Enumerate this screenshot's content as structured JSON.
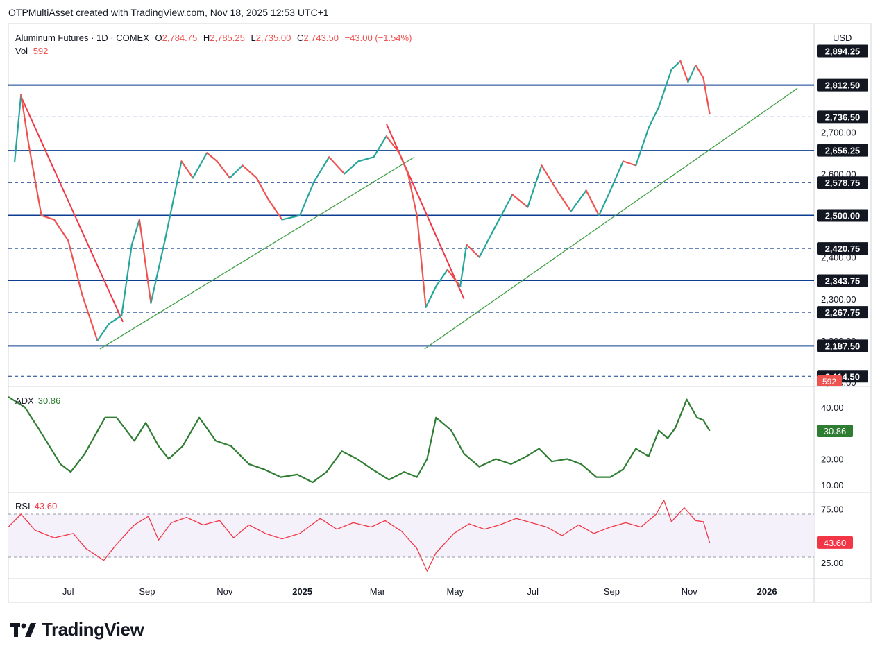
{
  "header": {
    "attribution": "OTPMultiAsset created with TradingView.com, Nov 18, 2025 12:53 UTC+1"
  },
  "brand": {
    "name": "TradingView"
  },
  "colors": {
    "up": "#26a69a",
    "down": "#ef5350",
    "level": "#0d3d91",
    "adx": "#2e7d32",
    "rsi": "#f23645",
    "trend_up": "#43a047",
    "trend_down": "#f23645",
    "label_bg": "#131722"
  },
  "chart_data": {
    "type": "candlestick",
    "legend": {
      "symbol": "Aluminum Futures · 1D · COMEX",
      "open_label": "O",
      "open": "2,784.75",
      "high_label": "H",
      "high": "2,785.25",
      "low_label": "L",
      "low": "2,735.00",
      "close_label": "C",
      "close": "2,743.50",
      "change": "−43.00 (−1.54%)",
      "vol_label": "Vol",
      "vol": "592"
    },
    "currency": "USD",
    "price_range": [
      2090,
      2960
    ],
    "price_ticks": [
      "2,700.00",
      "2,600.00",
      "2,400.00",
      "2,300.00",
      "2,200.00",
      "2,100.00"
    ],
    "price_tick_values": [
      2700,
      2600,
      2400,
      2300,
      2200,
      2100
    ],
    "levels": [
      {
        "value": 2894.25,
        "label": "2,894.25",
        "style": "dashed"
      },
      {
        "value": 2812.5,
        "label": "2,812.50",
        "style": "solid-thick"
      },
      {
        "value": 2736.5,
        "label": "2,736.50",
        "style": "dashed"
      },
      {
        "value": 2656.25,
        "label": "2,656.25",
        "style": "solid-thin"
      },
      {
        "value": 2578.75,
        "label": "2,578.75",
        "style": "dashed"
      },
      {
        "value": 2500.0,
        "label": "2,500.00",
        "style": "solid-thick"
      },
      {
        "value": 2420.75,
        "label": "2,420.75",
        "style": "dashed"
      },
      {
        "value": 2343.75,
        "label": "2,343.75",
        "style": "solid-thin"
      },
      {
        "value": 2267.75,
        "label": "2,267.75",
        "style": "dashed"
      },
      {
        "value": 2187.5,
        "label": "2,187.50",
        "style": "solid-thick"
      },
      {
        "value": 2114.5,
        "label": "2,114.50",
        "style": "dashed"
      }
    ],
    "price_path": [
      [
        "2024-05-20",
        2630
      ],
      [
        "2024-05-25",
        2790
      ],
      [
        "2024-05-31",
        2670
      ],
      [
        "2024-06-10",
        2500
      ],
      [
        "2024-06-20",
        2490
      ],
      [
        "2024-07-01",
        2440
      ],
      [
        "2024-07-12",
        2310
      ],
      [
        "2024-07-24",
        2200
      ],
      [
        "2024-08-02",
        2240
      ],
      [
        "2024-08-12",
        2260
      ],
      [
        "2024-08-20",
        2430
      ],
      [
        "2024-08-26",
        2490
      ],
      [
        "2024-09-04",
        2290
      ],
      [
        "2024-09-15",
        2440
      ],
      [
        "2024-09-28",
        2630
      ],
      [
        "2024-10-07",
        2590
      ],
      [
        "2024-10-18",
        2650
      ],
      [
        "2024-10-26",
        2630
      ],
      [
        "2024-11-05",
        2590
      ],
      [
        "2024-11-15",
        2620
      ],
      [
        "2024-11-26",
        2590
      ],
      [
        "2024-12-05",
        2540
      ],
      [
        "2024-12-16",
        2490
      ],
      [
        "2024-12-30",
        2500
      ],
      [
        "2025-01-10",
        2580
      ],
      [
        "2025-01-22",
        2640
      ],
      [
        "2025-02-03",
        2600
      ],
      [
        "2025-02-14",
        2630
      ],
      [
        "2025-02-26",
        2640
      ],
      [
        "2025-03-08",
        2690
      ],
      [
        "2025-03-18",
        2650
      ],
      [
        "2025-03-25",
        2600
      ],
      [
        "2025-04-01",
        2500
      ],
      [
        "2025-04-08",
        2280
      ],
      [
        "2025-04-16",
        2330
      ],
      [
        "2025-04-25",
        2370
      ],
      [
        "2025-05-05",
        2330
      ],
      [
        "2025-05-10",
        2430
      ],
      [
        "2025-05-20",
        2400
      ],
      [
        "2025-06-01",
        2470
      ],
      [
        "2025-06-15",
        2550
      ],
      [
        "2025-06-27",
        2520
      ],
      [
        "2025-07-08",
        2620
      ],
      [
        "2025-07-20",
        2560
      ],
      [
        "2025-07-31",
        2510
      ],
      [
        "2025-08-12",
        2560
      ],
      [
        "2025-08-22",
        2500
      ],
      [
        "2025-08-31",
        2560
      ],
      [
        "2025-09-10",
        2630
      ],
      [
        "2025-09-20",
        2620
      ],
      [
        "2025-09-30",
        2710
      ],
      [
        "2025-10-08",
        2760
      ],
      [
        "2025-10-18",
        2850
      ],
      [
        "2025-10-25",
        2870
      ],
      [
        "2025-10-31",
        2820
      ],
      [
        "2025-11-06",
        2860
      ],
      [
        "2025-11-12",
        2830
      ],
      [
        "2025-11-17",
        2743.5
      ]
    ],
    "trendlines": [
      {
        "color": "down",
        "from": [
          "2024-05-25",
          2785
        ],
        "to": [
          "2024-08-13",
          2245
        ]
      },
      {
        "color": "up",
        "from": [
          "2024-07-26",
          2180
        ],
        "to": [
          "2025-03-30",
          2640
        ]
      },
      {
        "color": "down",
        "from": [
          "2025-03-08",
          2720
        ],
        "to": [
          "2025-05-08",
          2300
        ]
      },
      {
        "color": "up",
        "from": [
          "2025-04-07",
          2180
        ],
        "to": [
          "2026-01-25",
          2805
        ]
      }
    ],
    "x_range": [
      "2024-05-15",
      "2026-02-07"
    ],
    "x_ticks": [
      {
        "date": "2024-07-01",
        "label": "Jul"
      },
      {
        "date": "2024-09-01",
        "label": "Sep"
      },
      {
        "date": "2024-11-01",
        "label": "Nov"
      },
      {
        "date": "2025-01-01",
        "label": "2025"
      },
      {
        "date": "2025-03-01",
        "label": "Mar"
      },
      {
        "date": "2025-05-01",
        "label": "May"
      },
      {
        "date": "2025-07-01",
        "label": "Jul"
      },
      {
        "date": "2025-09-01",
        "label": "Sep"
      },
      {
        "date": "2025-11-01",
        "label": "Nov"
      },
      {
        "date": "2026-01-01",
        "label": "2026"
      }
    ],
    "adx": {
      "label": "ADX",
      "value": "30.86",
      "last": 30.86,
      "range": [
        7,
        48
      ],
      "ticks": [
        {
          "value": 40,
          "label": "40.00"
        },
        {
          "value": 20,
          "label": "20.00"
        },
        {
          "value": 10,
          "label": "10.00"
        }
      ],
      "path": [
        [
          "2024-05-15",
          44
        ],
        [
          "2024-05-28",
          40
        ],
        [
          "2024-06-10",
          30
        ],
        [
          "2024-06-25",
          18
        ],
        [
          "2024-07-03",
          15
        ],
        [
          "2024-07-14",
          22
        ],
        [
          "2024-07-30",
          36
        ],
        [
          "2024-08-08",
          36
        ],
        [
          "2024-08-22",
          27
        ],
        [
          "2024-08-31",
          34
        ],
        [
          "2024-09-10",
          25
        ],
        [
          "2024-09-18",
          20
        ],
        [
          "2024-09-29",
          25
        ],
        [
          "2024-10-12",
          36
        ],
        [
          "2024-10-25",
          27
        ],
        [
          "2024-11-06",
          25
        ],
        [
          "2024-11-20",
          18
        ],
        [
          "2024-12-02",
          16
        ],
        [
          "2024-12-15",
          13
        ],
        [
          "2024-12-28",
          14
        ],
        [
          "2025-01-09",
          11
        ],
        [
          "2025-01-20",
          15
        ],
        [
          "2025-02-01",
          23
        ],
        [
          "2025-02-13",
          20
        ],
        [
          "2025-02-25",
          16
        ],
        [
          "2025-03-10",
          12
        ],
        [
          "2025-03-22",
          15
        ],
        [
          "2025-04-01",
          13
        ],
        [
          "2025-04-09",
          20
        ],
        [
          "2025-04-16",
          36
        ],
        [
          "2025-04-28",
          31
        ],
        [
          "2025-05-08",
          22
        ],
        [
          "2025-05-20",
          17
        ],
        [
          "2025-06-02",
          20
        ],
        [
          "2025-06-14",
          18
        ],
        [
          "2025-06-26",
          21
        ],
        [
          "2025-07-06",
          24
        ],
        [
          "2025-07-16",
          19
        ],
        [
          "2025-07-28",
          20
        ],
        [
          "2025-08-08",
          18
        ],
        [
          "2025-08-20",
          13
        ],
        [
          "2025-08-31",
          13
        ],
        [
          "2025-09-10",
          16
        ],
        [
          "2025-09-20",
          24
        ],
        [
          "2025-09-30",
          21
        ],
        [
          "2025-10-08",
          31
        ],
        [
          "2025-10-15",
          28
        ],
        [
          "2025-10-21",
          32
        ],
        [
          "2025-10-30",
          43
        ],
        [
          "2025-11-07",
          36
        ],
        [
          "2025-11-12",
          35
        ],
        [
          "2025-11-17",
          30.86
        ]
      ]
    },
    "rsi": {
      "label": "RSI",
      "value": "43.60",
      "last": 43.6,
      "range": [
        10,
        90
      ],
      "ticks": [
        {
          "value": 75,
          "label": "75.00"
        },
        {
          "value": 25,
          "label": "25.00"
        }
      ],
      "bands": [
        70,
        30
      ],
      "path": [
        [
          "2024-05-15",
          58
        ],
        [
          "2024-05-25",
          70
        ],
        [
          "2024-06-05",
          55
        ],
        [
          "2024-06-20",
          48
        ],
        [
          "2024-07-05",
          52
        ],
        [
          "2024-07-15",
          38
        ],
        [
          "2024-07-29",
          27
        ],
        [
          "2024-08-08",
          42
        ],
        [
          "2024-08-22",
          60
        ],
        [
          "2024-09-02",
          68
        ],
        [
          "2024-09-10",
          46
        ],
        [
          "2024-09-20",
          62
        ],
        [
          "2024-10-02",
          67
        ],
        [
          "2024-10-15",
          60
        ],
        [
          "2024-10-28",
          64
        ],
        [
          "2024-11-08",
          48
        ],
        [
          "2024-11-20",
          60
        ],
        [
          "2024-12-03",
          52
        ],
        [
          "2024-12-16",
          47
        ],
        [
          "2024-12-30",
          52
        ],
        [
          "2025-01-15",
          66
        ],
        [
          "2025-01-28",
          56
        ],
        [
          "2025-02-10",
          62
        ],
        [
          "2025-02-24",
          58
        ],
        [
          "2025-03-07",
          64
        ],
        [
          "2025-03-20",
          54
        ],
        [
          "2025-04-01",
          38
        ],
        [
          "2025-04-09",
          17
        ],
        [
          "2025-04-16",
          34
        ],
        [
          "2025-04-30",
          52
        ],
        [
          "2025-05-12",
          61
        ],
        [
          "2025-05-24",
          56
        ],
        [
          "2025-06-05",
          60
        ],
        [
          "2025-06-18",
          66
        ],
        [
          "2025-06-30",
          62
        ],
        [
          "2025-07-12",
          58
        ],
        [
          "2025-07-24",
          50
        ],
        [
          "2025-08-06",
          60
        ],
        [
          "2025-08-18",
          52
        ],
        [
          "2025-08-31",
          58
        ],
        [
          "2025-09-12",
          62
        ],
        [
          "2025-09-24",
          58
        ],
        [
          "2025-10-06",
          70
        ],
        [
          "2025-10-12",
          83
        ],
        [
          "2025-10-18",
          63
        ],
        [
          "2025-10-28",
          76
        ],
        [
          "2025-11-06",
          64
        ],
        [
          "2025-11-12",
          63
        ],
        [
          "2025-11-17",
          43.6
        ]
      ]
    }
  }
}
